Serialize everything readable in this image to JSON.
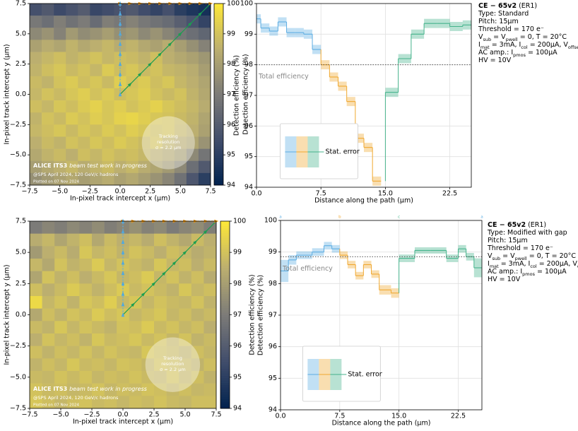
{
  "chart_data": [
    {
      "type": "heatmap",
      "xlabel": "In-pixel track intercept x (µm)",
      "ylabel": "In-pixel track intercept y (µm)",
      "zlabel": "Detection efficiency (%)",
      "xlim": [
        -7.5,
        7.5
      ],
      "ylim": [
        -7.5,
        7.5
      ],
      "zlim": [
        94,
        100
      ],
      "xticks": [
        {
          "value": -7.5,
          "label": "−7.5"
        },
        {
          "value": -5,
          "label": "−5.0"
        },
        {
          "value": -2.5,
          "label": "−2.5"
        },
        {
          "value": 0,
          "label": "0.0"
        },
        {
          "value": 2.5,
          "label": "2.5"
        },
        {
          "value": 5,
          "label": "5.0"
        },
        {
          "value": 7.5,
          "label": "7.5"
        }
      ],
      "yticks": [
        {
          "value": -7.5,
          "label": "−7.5"
        },
        {
          "value": -5,
          "label": "−5.0"
        },
        {
          "value": -2.5,
          "label": "−2.5"
        },
        {
          "value": 0,
          "label": "0.0"
        },
        {
          "value": 2.5,
          "label": "2.5"
        },
        {
          "value": 5,
          "label": "5.0"
        },
        {
          "value": 7.5,
          "label": "7.5"
        }
      ],
      "zticks": [
        94,
        95,
        96,
        97,
        98,
        99,
        100
      ],
      "x": [
        -7,
        -6,
        -5,
        -4,
        -3,
        -2,
        -1,
        0,
        1,
        2,
        3,
        4,
        5,
        6,
        7
      ],
      "y": [
        7,
        6,
        5,
        4,
        3,
        2,
        1,
        0,
        -1,
        -2,
        -3,
        -4,
        -5,
        -6,
        -7
      ],
      "z": [
        [
          95.6,
          95.9,
          95.4,
          95.7,
          96.0,
          95.3,
          95.5,
          95.7,
          95.9,
          95.5,
          95.2,
          95.6,
          95.0,
          94.7,
          94.5
        ],
        [
          96.9,
          96.6,
          97.1,
          96.7,
          97.0,
          96.5,
          97.1,
          96.9,
          97.2,
          96.9,
          96.7,
          96.5,
          96.1,
          95.7,
          95.2
        ],
        [
          97.4,
          97.7,
          97.2,
          97.9,
          97.5,
          97.7,
          98.0,
          97.6,
          97.8,
          97.4,
          97.7,
          97.3,
          96.9,
          96.6,
          96.3
        ],
        [
          98.1,
          98.4,
          98.2,
          98.6,
          98.3,
          98.5,
          98.7,
          98.4,
          98.6,
          98.3,
          98.1,
          98.4,
          98.0,
          97.6,
          97.2
        ],
        [
          98.5,
          98.7,
          98.9,
          98.6,
          98.8,
          99.0,
          98.7,
          98.9,
          98.8,
          98.6,
          98.9,
          98.5,
          98.3,
          98.1,
          97.8
        ],
        [
          98.6,
          98.9,
          99.1,
          98.8,
          99.0,
          98.7,
          99.2,
          98.9,
          99.1,
          98.8,
          99.0,
          98.7,
          98.6,
          98.4,
          98.0
        ],
        [
          98.8,
          98.6,
          99.0,
          99.2,
          98.9,
          99.1,
          98.8,
          99.3,
          99.0,
          99.2,
          98.9,
          99.1,
          98.7,
          98.5,
          98.2
        ],
        [
          98.7,
          99.0,
          98.8,
          99.1,
          99.3,
          99.0,
          99.2,
          98.9,
          99.1,
          99.3,
          99.0,
          98.8,
          99.0,
          98.6,
          98.3
        ],
        [
          98.9,
          98.7,
          99.1,
          98.9,
          99.2,
          99.4,
          99.1,
          99.3,
          99.0,
          99.2,
          99.4,
          99.1,
          98.9,
          98.7,
          98.4
        ],
        [
          98.6,
          99.0,
          98.8,
          99.2,
          99.0,
          99.3,
          99.1,
          99.4,
          99.5,
          99.3,
          99.1,
          99.0,
          98.8,
          98.6,
          98.2
        ],
        [
          98.7,
          98.9,
          99.1,
          98.8,
          99.1,
          98.9,
          99.2,
          99.0,
          99.3,
          99.1,
          98.9,
          99.0,
          98.7,
          98.5,
          98.1
        ],
        [
          98.5,
          98.8,
          98.6,
          99.0,
          98.8,
          99.1,
          98.9,
          99.2,
          99.0,
          98.8,
          99.0,
          98.6,
          98.4,
          98.2,
          97.7
        ],
        [
          98.3,
          98.6,
          98.8,
          98.5,
          98.9,
          98.7,
          99.0,
          98.8,
          98.9,
          98.7,
          98.5,
          98.3,
          98.0,
          97.4,
          96.8
        ],
        [
          98.0,
          98.3,
          98.5,
          98.7,
          98.4,
          98.6,
          98.8,
          98.5,
          98.7,
          98.4,
          98.2,
          97.9,
          97.4,
          96.6,
          95.9
        ],
        [
          97.6,
          97.9,
          98.1,
          98.3,
          98.0,
          98.2,
          98.4,
          98.1,
          98.3,
          98.0,
          97.7,
          97.3,
          96.7,
          95.8,
          95.0
        ]
      ],
      "annotation": {
        "experiment": "ALICE ITS3",
        "status": "beam test work in progress",
        "conditions": "@SPS April 2024, 120 GeV/c hadrons",
        "date": "Plotted on 07 Nov 2024",
        "resolution": [
          "Tracking",
          "resolution",
          "σ = 2.2 µm"
        ],
        "sigma": 2.2
      }
    },
    {
      "type": "step",
      "xlabel": "Distance along the path (µm)",
      "ylabel": "Detection efficiency (%)",
      "xlim": [
        0,
        25
      ],
      "ylim": [
        94,
        100
      ],
      "xticks": [
        {
          "value": 0,
          "label": "0.0"
        },
        {
          "value": 7.5,
          "label": "7.5"
        },
        {
          "value": 15,
          "label": "15.0"
        },
        {
          "value": 22.5,
          "label": "22.5"
        }
      ],
      "yticks": [
        94,
        95,
        96,
        97,
        98,
        99,
        100
      ],
      "grid": true,
      "series": [
        {
          "color": "#5dade2",
          "bins": [
            0,
            0.5,
            1.5,
            2.5,
            3.5,
            4.5,
            5.5,
            6.5,
            7.5
          ],
          "values": [
            99.5,
            99.2,
            99.1,
            99.4,
            99.05,
            99.05,
            99.0,
            98.5
          ],
          "errors": [
            0.15,
            0.15,
            0.15,
            0.15,
            0.15,
            0.15,
            0.15,
            0.15
          ]
        },
        {
          "color": "#f0a830",
          "bins": [
            7.5,
            8.5,
            9.5,
            10.5,
            11.5,
            12.5,
            13.5,
            14.5
          ],
          "values": [
            98.0,
            97.6,
            97.3,
            96.8,
            95.6,
            95.3,
            94.2
          ],
          "errors": [
            0.15,
            0.15,
            0.15,
            0.15,
            0.15,
            0.15,
            0.15
          ]
        },
        {
          "color": "#45b38b",
          "bins": [
            15,
            16.5,
            18,
            19.5,
            21,
            22.5,
            24,
            25
          ],
          "values": [
            97.1,
            98.2,
            99.0,
            99.35,
            99.35,
            99.25,
            99.3
          ],
          "errors": [
            0.15,
            0.15,
            0.15,
            0.15,
            0.15,
            0.15,
            0.15
          ]
        }
      ],
      "total": {
        "value": 98.0,
        "label": "Total efficiency"
      },
      "legend": {
        "label": "Stat. error",
        "loc": "lower left"
      },
      "annotation": {
        "title": "CE − 65v2",
        "note": "(ER1)",
        "lines": [
          [
            "Type: Standard"
          ],
          [
            "Pitch: 15µm"
          ],
          [
            "Threshold = 170 e⁻"
          ],
          [
            "V",
            "sub",
            " = V",
            "pwell",
            " = 0, T = 20°C"
          ],
          [
            "I",
            "mat",
            " = 3mA, I",
            "col",
            " = 200µA, V",
            "offset"
          ],
          [
            "AC amp.: I",
            "pmos",
            " = 100µA"
          ],
          [
            "HV = 10V"
          ]
        ]
      }
    },
    {
      "type": "heatmap",
      "xlabel": "In-pixel track intercept x (µm)",
      "ylabel": "In-pixel track intercept y (µm)",
      "zlabel": "Detection efficiency (%)",
      "xlim": [
        -7.5,
        7.5
      ],
      "ylim": [
        -7.5,
        7.5
      ],
      "zlim": [
        94,
        100
      ],
      "xticks": [
        {
          "value": -7.5,
          "label": "−7.5"
        },
        {
          "value": -5,
          "label": "−5.0"
        },
        {
          "value": -2.5,
          "label": "−2.5"
        },
        {
          "value": 0,
          "label": "0.0"
        },
        {
          "value": 2.5,
          "label": "2.5"
        },
        {
          "value": 5,
          "label": "5.0"
        },
        {
          "value": 7.5,
          "label": "7.5"
        }
      ],
      "yticks": [
        {
          "value": -7.5,
          "label": "−7.5"
        },
        {
          "value": -5,
          "label": "−5.0"
        },
        {
          "value": -2.5,
          "label": "−2.5"
        },
        {
          "value": 0,
          "label": "0.0"
        },
        {
          "value": 2.5,
          "label": "2.5"
        },
        {
          "value": 5,
          "label": "5.0"
        },
        {
          "value": 7.5,
          "label": "7.5"
        }
      ],
      "zticks": [
        94,
        95,
        96,
        97,
        98,
        99,
        100
      ],
      "x": [
        -7,
        -6,
        -5,
        -4,
        -3,
        -2,
        -1,
        0,
        1,
        2,
        3,
        4,
        5,
        6,
        7
      ],
      "y": [
        7,
        6,
        5,
        4,
        3,
        2,
        1,
        0,
        -1,
        -2,
        -3,
        -4,
        -5,
        -6,
        -7
      ],
      "z": [
        [
          97.0,
          97.3,
          97.1,
          97.4,
          97.2,
          97.5,
          97.1,
          97.3,
          97.6,
          97.2,
          97.4,
          97.0,
          97.3,
          97.5,
          97.1
        ],
        [
          98.4,
          98.7,
          98.2,
          98.6,
          98.9,
          98.3,
          98.8,
          98.5,
          98.7,
          98.4,
          98.9,
          98.6,
          98.3,
          98.8,
          98.5
        ],
        [
          97.9,
          98.5,
          98.8,
          98.4,
          99.1,
          98.7,
          98.9,
          98.6,
          99.0,
          98.8,
          98.5,
          98.9,
          98.7,
          98.4,
          98.6
        ],
        [
          98.7,
          98.3,
          99.0,
          98.6,
          98.8,
          99.2,
          98.7,
          99.0,
          98.8,
          98.6,
          99.1,
          98.7,
          98.9,
          98.5,
          98.8
        ],
        [
          98.2,
          99.0,
          98.6,
          98.9,
          98.5,
          98.8,
          99.1,
          98.7,
          98.9,
          99.2,
          98.7,
          99.0,
          98.6,
          98.9,
          98.4
        ],
        [
          98.9,
          98.5,
          98.8,
          99.2,
          98.9,
          98.6,
          98.9,
          99.2,
          98.8,
          99.0,
          98.8,
          98.6,
          99.1,
          98.7,
          98.9
        ],
        [
          99.6,
          98.7,
          99.0,
          98.6,
          99.1,
          98.9,
          99.3,
          98.8,
          99.1,
          98.7,
          99.0,
          98.8,
          98.7,
          99.0,
          98.6
        ],
        [
          98.3,
          98.9,
          98.6,
          99.0,
          98.8,
          99.2,
          98.9,
          99.1,
          98.7,
          98.9,
          99.1,
          98.7,
          98.9,
          98.6,
          98.8
        ],
        [
          98.8,
          98.6,
          99.1,
          98.7,
          99.0,
          98.8,
          98.6,
          99.0,
          98.9,
          99.2,
          98.8,
          99.0,
          98.7,
          98.9,
          98.5
        ],
        [
          98.5,
          99.0,
          98.7,
          98.9,
          98.6,
          99.1,
          98.8,
          98.9,
          99.1,
          98.8,
          99.0,
          98.7,
          99.0,
          98.6,
          98.8
        ],
        [
          98.9,
          98.6,
          98.9,
          98.7,
          99.0,
          98.7,
          99.0,
          98.8,
          98.7,
          99.1,
          98.9,
          98.8,
          98.6,
          98.9,
          98.7
        ],
        [
          98.6,
          98.9,
          98.7,
          99.1,
          98.8,
          98.9,
          98.7,
          99.0,
          98.9,
          98.7,
          99.0,
          98.9,
          98.8,
          98.6,
          98.9
        ],
        [
          98.8,
          98.7,
          99.0,
          98.8,
          99.0,
          98.7,
          98.9,
          98.8,
          99.0,
          98.8,
          98.7,
          99.0,
          98.7,
          98.9,
          98.6
        ],
        [
          99.0,
          98.8,
          98.9,
          98.7,
          98.8,
          99.0,
          98.7,
          98.9,
          98.8,
          99.0,
          98.9,
          98.7,
          98.9,
          98.7,
          98.8
        ],
        [
          99.1,
          98.9,
          98.7,
          98.9,
          99.0,
          98.8,
          98.9,
          98.7,
          98.9,
          98.8,
          99.0,
          98.8,
          98.7,
          98.9,
          98.9
        ]
      ],
      "annotation": {
        "experiment": "ALICE ITS3",
        "status": "beam test work in progress",
        "conditions": "@SPS April 2024, 120 GeV/c hadrons",
        "date": "Plotted on 07 Nov 2024",
        "resolution": [
          "Tracking",
          "resolution",
          "σ = 2.2 µm"
        ],
        "sigma": 2.2
      }
    },
    {
      "type": "step",
      "xlabel": "Distance along the path (µm)",
      "ylabel": "Detection efficiency (%)",
      "xlim": [
        0,
        25.5
      ],
      "ylim": [
        94,
        100
      ],
      "xticks": [
        {
          "value": 0,
          "label": "0.0"
        },
        {
          "value": 7.5,
          "label": "7.5"
        },
        {
          "value": 15,
          "label": "15.0"
        },
        {
          "value": 22.5,
          "label": "22.5"
        }
      ],
      "yticks": [
        94,
        95,
        96,
        97,
        98,
        99,
        100
      ],
      "grid": true,
      "series": [
        {
          "color": "#5dade2",
          "bins": [
            0,
            1,
            2,
            4,
            5.5,
            6.5,
            7.5
          ],
          "values": [
            98.4,
            98.75,
            98.9,
            99.0,
            99.2,
            99.1
          ],
          "errors": [
            0.35,
            0.15,
            0.12,
            0.12,
            0.12,
            0.12
          ]
        },
        {
          "color": "#f0a830",
          "bins": [
            7.5,
            8.5,
            9.5,
            10.5,
            11.5,
            12.5,
            14,
            15
          ],
          "values": [
            98.9,
            98.6,
            98.25,
            98.6,
            98.3,
            97.8,
            97.7
          ],
          "errors": [
            0.12,
            0.12,
            0.12,
            0.12,
            0.12,
            0.15,
            0.15
          ]
        },
        {
          "color": "#45b38b",
          "bins": [
            15,
            17,
            19,
            21,
            22.5,
            23.5,
            24.5,
            25.5
          ],
          "values": [
            98.8,
            99.05,
            99.05,
            98.8,
            99.1,
            98.85,
            98.5
          ],
          "errors": [
            0.12,
            0.1,
            0.1,
            0.12,
            0.12,
            0.12,
            0.3
          ]
        }
      ],
      "total": {
        "value": 98.85,
        "label": "Total efficiency"
      },
      "legend": {
        "label": "Stat. error",
        "loc": "lower left"
      },
      "path_labels": [
        {
          "value": 0,
          "label": "a"
        },
        {
          "value": 7.5,
          "label": "b"
        },
        {
          "value": 15,
          "label": "c"
        },
        {
          "value": 25.5,
          "label": "a"
        }
      ],
      "annotation": {
        "title": "CE − 65v2",
        "note": "(ER1)",
        "lines": [
          [
            "Type: Modified with gap"
          ],
          [
            "Pitch: 15µm"
          ],
          [
            "Threshold = 170 e⁻"
          ],
          [
            "V",
            "sub",
            " = V",
            "pwell",
            " = 0, T = 20°C"
          ],
          [
            "I",
            "mat",
            " = 3mA, I",
            "col",
            " = 200µA, V",
            "offset"
          ],
          [
            "AC amp.: I",
            "pmos",
            " = 100µA"
          ],
          [
            "HV = 10V"
          ]
        ]
      }
    }
  ]
}
